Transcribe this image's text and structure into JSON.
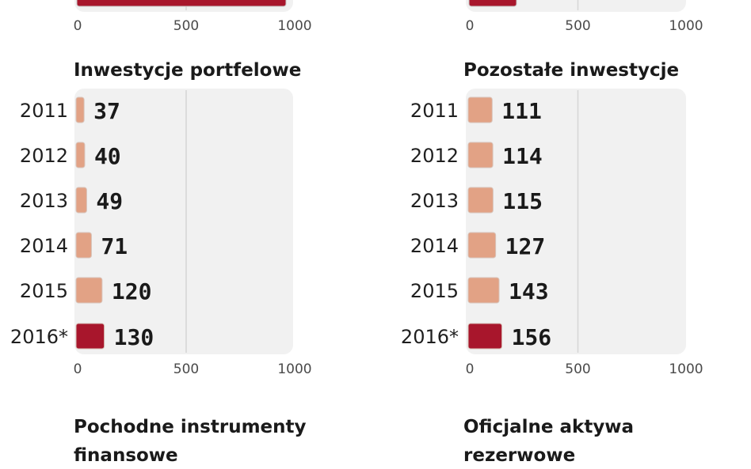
{
  "chart_data": [
    {
      "type": "bar",
      "orientation": "horizontal",
      "title": "",
      "ticks": [
        "0",
        "500",
        "1000"
      ],
      "xlim": [
        0,
        1000
      ],
      "categories": [],
      "values": [],
      "highlight_last": true,
      "colors": {
        "bar": "#e2a285",
        "highlight": "#a8162c",
        "plot_bg": "#f1f1f1",
        "grid": "#d6d6d6"
      }
    },
    {
      "type": "bar",
      "orientation": "horizontal",
      "title": "",
      "ticks": [
        "0",
        "500",
        "1000"
      ],
      "xlim": [
        0,
        1000
      ],
      "categories": [],
      "values": [],
      "highlight_last": true,
      "colors": {
        "bar": "#e2a285",
        "highlight": "#a8162c",
        "plot_bg": "#f1f1f1",
        "grid": "#d6d6d6"
      }
    },
    {
      "type": "bar",
      "orientation": "horizontal",
      "title": "Inwestycje portfelowe",
      "ticks": [
        "0",
        "500",
        "1000"
      ],
      "xlim": [
        0,
        1000
      ],
      "categories": [
        "2011",
        "2012",
        "2013",
        "2014",
        "2015",
        "2016*"
      ],
      "values": [
        37,
        40,
        49,
        71,
        120,
        130
      ],
      "highlight_last": true,
      "colors": {
        "bar": "#e2a285",
        "highlight": "#a8162c",
        "plot_bg": "#f1f1f1",
        "grid": "#d6d6d6"
      }
    },
    {
      "type": "bar",
      "orientation": "horizontal",
      "title": "Pozostałe inwestycje",
      "ticks": [
        "0",
        "500",
        "1000"
      ],
      "xlim": [
        0,
        1000
      ],
      "categories": [
        "2011",
        "2012",
        "2013",
        "2014",
        "2015",
        "2016*"
      ],
      "values": [
        111,
        114,
        115,
        127,
        143,
        156
      ],
      "highlight_last": true,
      "colors": {
        "bar": "#e2a285",
        "highlight": "#a8162c",
        "plot_bg": "#f1f1f1",
        "grid": "#d6d6d6"
      }
    },
    {
      "type": "bar",
      "orientation": "horizontal",
      "title": "Pochodne instrumenty finansowe",
      "title_lines": [
        "Pochodne instrumenty",
        "finansowe"
      ],
      "categories": [],
      "values": []
    },
    {
      "type": "bar",
      "orientation": "horizontal",
      "title": "Oficjalne aktywa rezerwowe",
      "title_lines": [
        "Oficjalne aktywa",
        "rezerwowe"
      ],
      "categories": [],
      "values": []
    }
  ]
}
